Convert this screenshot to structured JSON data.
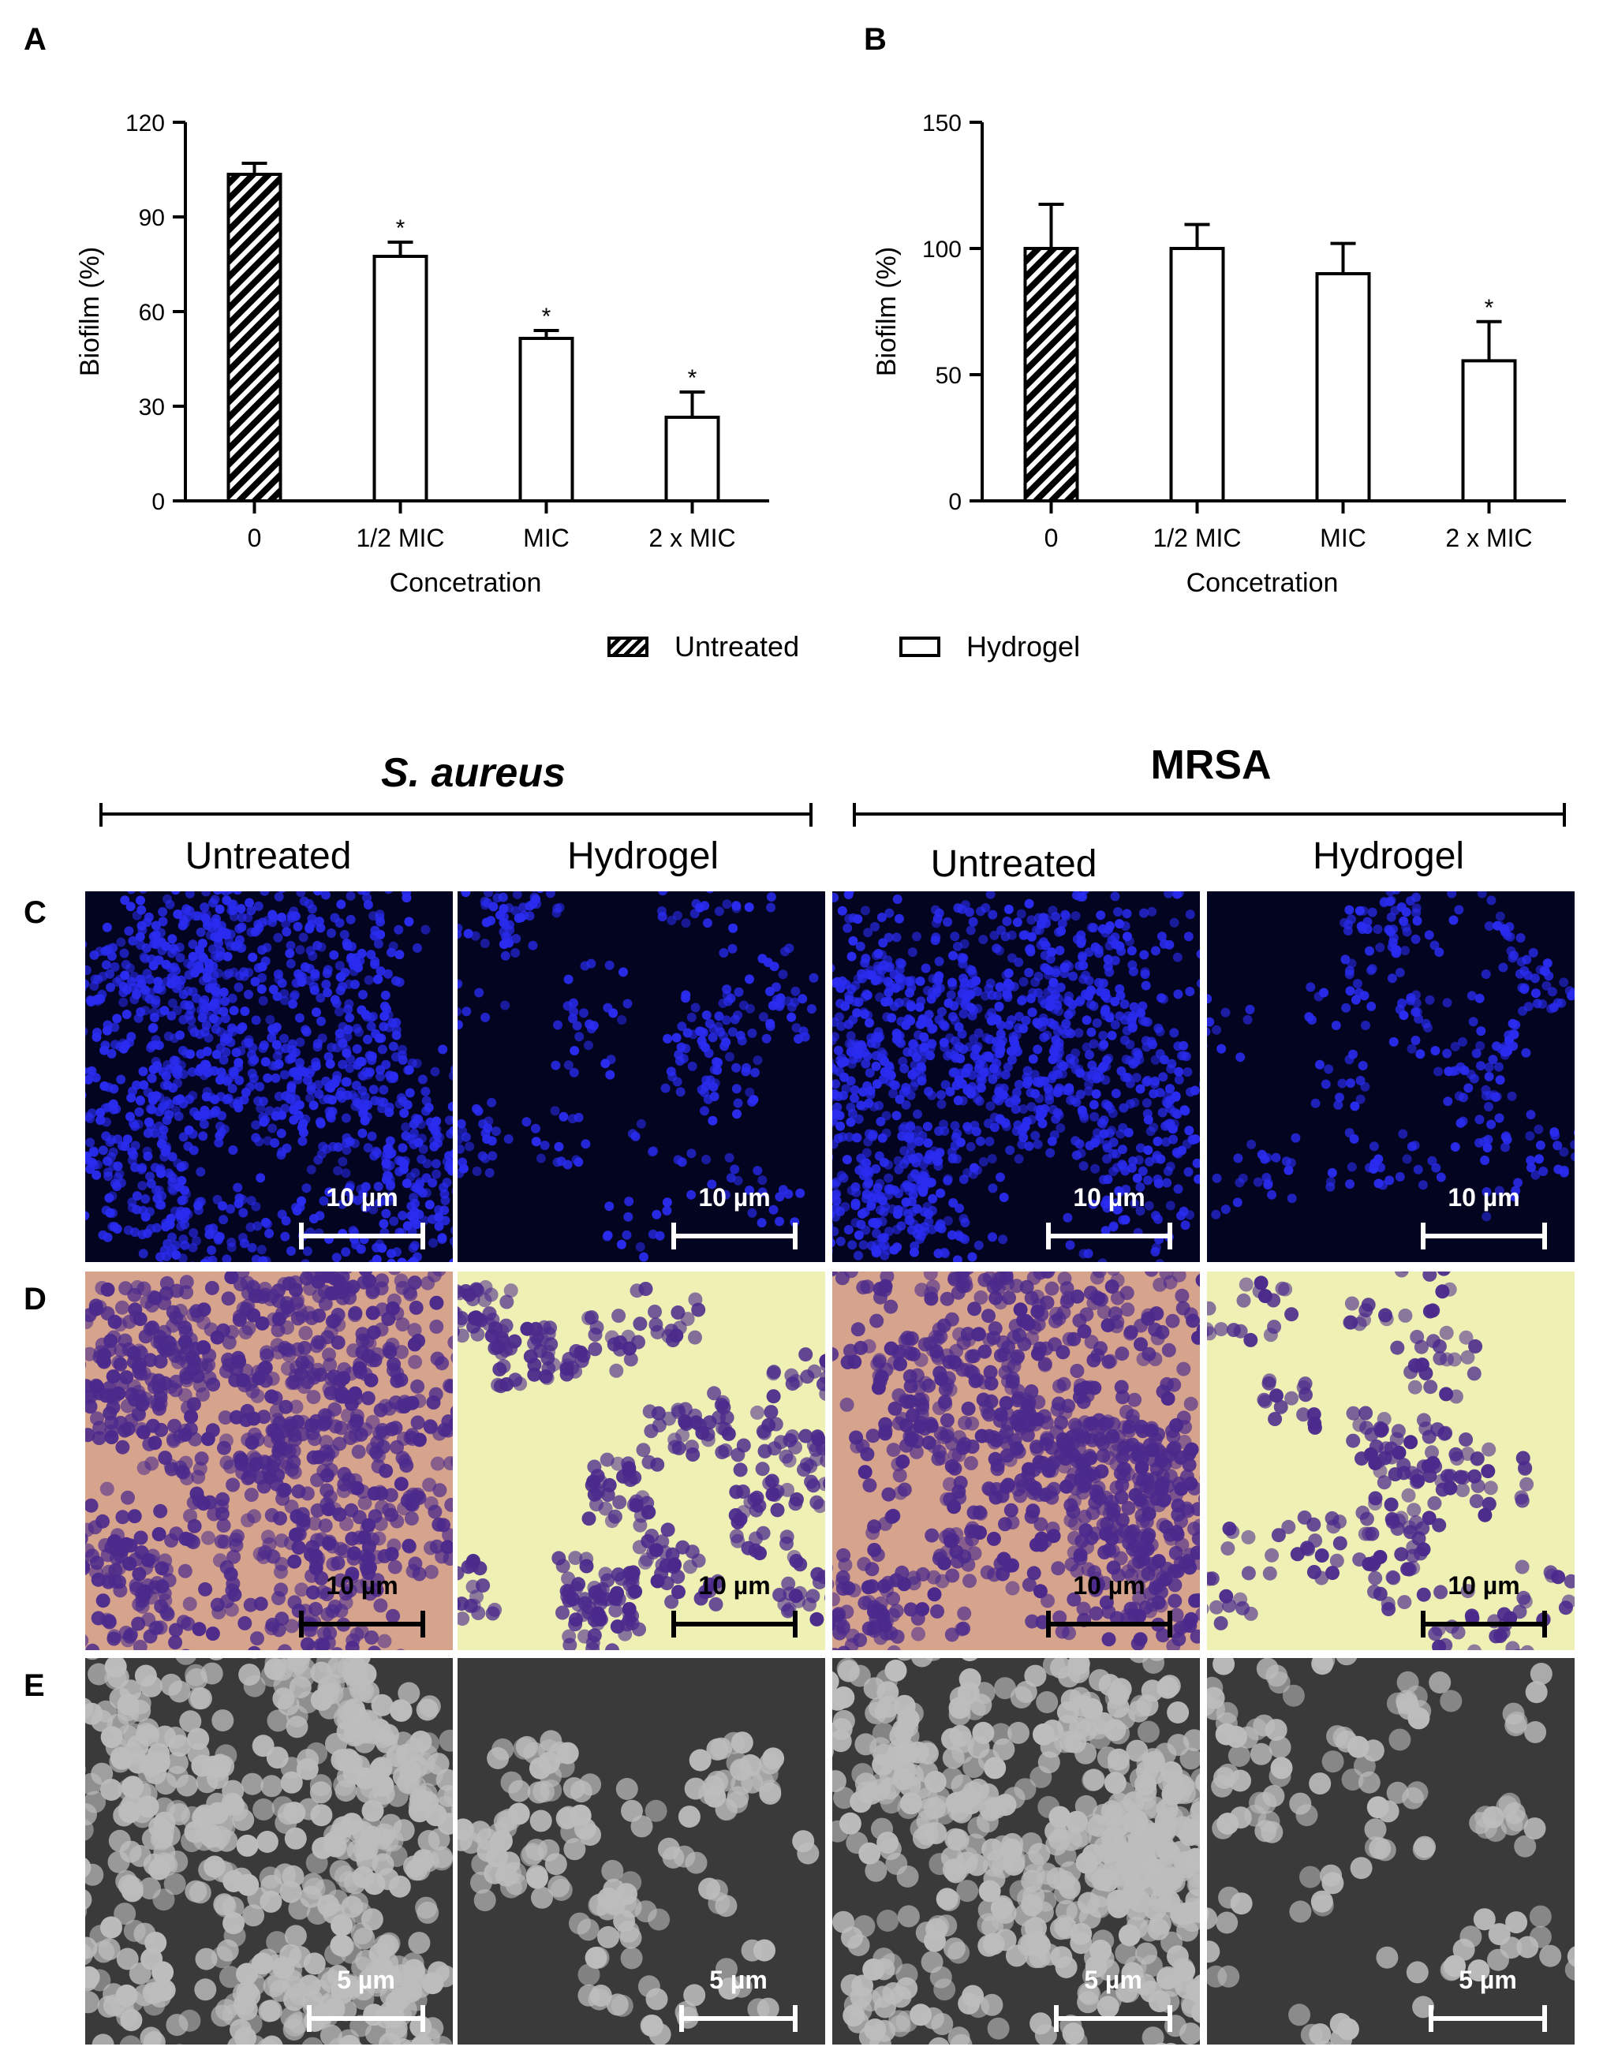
{
  "panel_letters": {
    "a": "A",
    "b": "B",
    "c": "C",
    "d": "D",
    "e": "E"
  },
  "chart_data": [
    {
      "type": "bar",
      "panel": "A",
      "categories": [
        "0",
        "1/2 MIC",
        "MIC",
        "2 x MIC"
      ],
      "values": [
        103.5,
        77.5,
        51.5,
        26.5
      ],
      "errors": [
        3.5,
        4.5,
        2.5,
        8.0
      ],
      "significance": [
        "",
        "*",
        "*",
        "*"
      ],
      "series_fill": [
        "Untreated",
        "Hydrogel",
        "Hydrogel",
        "Hydrogel"
      ],
      "xlabel": "Concetration",
      "ylabel": "Biofilm (%)",
      "ylim": [
        0,
        120
      ],
      "yticks": [
        0,
        30,
        60,
        90,
        120
      ],
      "grid": false
    },
    {
      "type": "bar",
      "panel": "B",
      "categories": [
        "0",
        "1/2 MIC",
        "MIC",
        "2 x MIC"
      ],
      "values": [
        100,
        100,
        90,
        55.5
      ],
      "errors": [
        17.5,
        9.5,
        12.0,
        15.5
      ],
      "significance": [
        "",
        "",
        "",
        "*"
      ],
      "series_fill": [
        "Untreated",
        "Hydrogel",
        "Hydrogel",
        "Hydrogel"
      ],
      "xlabel": "Concetration",
      "ylabel": "Biofilm (%)",
      "ylim": [
        0,
        150
      ],
      "yticks": [
        0,
        50,
        100,
        150
      ],
      "grid": false
    }
  ],
  "legend": {
    "untreated": "Untreated",
    "hydrogel": "Hydrogel",
    "placement": "bottom-center"
  },
  "organisms": {
    "left": "S. aureus",
    "right": "MRSA"
  },
  "columns": {
    "c1": "Untreated",
    "c2": "Hydrogel",
    "c3": "Untreated",
    "c4": "Hydrogel"
  },
  "scale_bars": {
    "row_c": "10 µm",
    "row_d": "10 µm",
    "row_e": "5 µm"
  },
  "colors": {
    "fluorescence_bg": "#030420",
    "fluorescence_cell": "#2a2cf0",
    "gram_bg_dense": "#d6a48c",
    "gram_bg_sparse": "#eef0b4",
    "gram_cell": "#4b2a8c",
    "sem_bg": "#3a3a3a",
    "sem_cell": "#bdbdbd"
  }
}
